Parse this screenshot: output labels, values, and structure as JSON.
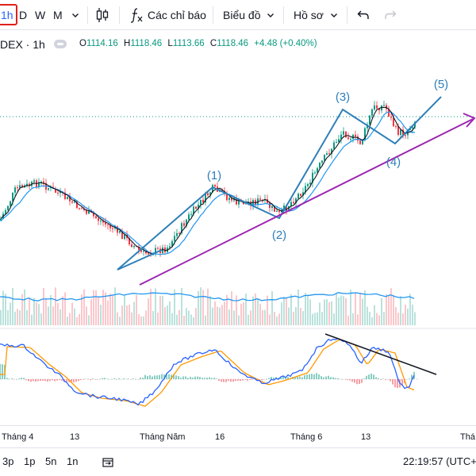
{
  "toolbar": {
    "intervals": [
      "1h",
      "D",
      "W",
      "M"
    ],
    "indicators_label": "Các chỉ báo",
    "chart_type_label": "Biểu đồ",
    "profile_label": "Hồ sơ"
  },
  "legend": {
    "symbol": "DEX · 1h",
    "o_label": "O",
    "o_value": "1114.16",
    "h_label": "H",
    "h_value": "1118.46",
    "l_label": "L",
    "l_value": "1113.66",
    "c_label": "C",
    "c_value": "1118.46",
    "change": "+4.48 (+0.40%)"
  },
  "waves": {
    "w1": "(1)",
    "w2": "(2)",
    "w3": "(3)",
    "w4": "(4)",
    "w5": "(5)"
  },
  "time_axis": [
    "Tháng 4",
    "13",
    "Tháng Năm",
    "16",
    "Tháng 6",
    "13",
    "Thá"
  ],
  "bottom": {
    "ranges": [
      "3p",
      "1p",
      "5n",
      "1n"
    ],
    "clock": "22:19:57 (UTC+"
  },
  "colors": {
    "up": "#089981",
    "down": "#f23645",
    "wave_line": "#2e7fb8",
    "trend_line": "#9c27b0",
    "ma_fast": "#131722",
    "ma_slow": "#2196f3",
    "macd": "#2962ff",
    "signal": "#ff9800"
  }
}
